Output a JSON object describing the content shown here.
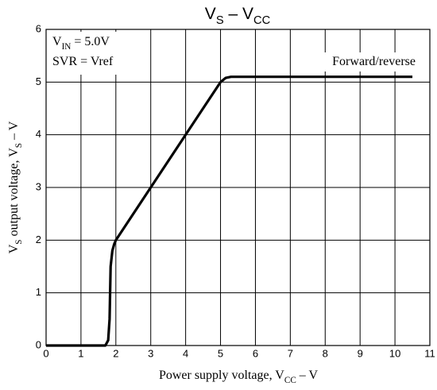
{
  "chart_data": {
    "type": "line",
    "title": [
      {
        "t": "V"
      },
      {
        "t": "S",
        "sub": true
      },
      {
        "t": " – V"
      },
      {
        "t": "CC",
        "sub": true
      }
    ],
    "x_label": [
      {
        "t": "Power supply voltage, V"
      },
      {
        "t": "CC",
        "sub": true
      },
      {
        "t": " – V"
      }
    ],
    "y_label": [
      {
        "t": "V"
      },
      {
        "t": "S",
        "sub": true
      },
      {
        "t": " output voltage, V"
      },
      {
        "t": "S",
        "sub": true
      },
      {
        "t": " – V"
      }
    ],
    "annotations": [
      [
        {
          "t": "V"
        },
        {
          "t": "IN",
          "sub": true
        },
        {
          "t": " = 5.0V"
        }
      ],
      [
        {
          "t": "SVR = Vref"
        }
      ],
      [
        {
          "t": "Forward/reverse"
        }
      ]
    ],
    "series": [
      {
        "color": "#000000",
        "x": [
          0,
          1.7,
          1.78,
          1.82,
          1.85,
          1.9,
          1.95,
          2.0,
          5.0,
          5.15,
          5.3,
          10.5
        ],
        "values": [
          0,
          0,
          0.1,
          0.5,
          1.5,
          1.8,
          1.92,
          2.0,
          5.0,
          5.08,
          5.1,
          5.1
        ]
      }
    ],
    "xlim": [
      0,
      11
    ],
    "xticks": [
      0,
      1,
      2,
      3,
      4,
      5,
      6,
      7,
      8,
      9,
      10,
      11
    ],
    "ylim": [
      0,
      6
    ],
    "yticks": [
      0,
      1,
      2,
      3,
      4,
      5,
      6
    ],
    "grid": true
  }
}
